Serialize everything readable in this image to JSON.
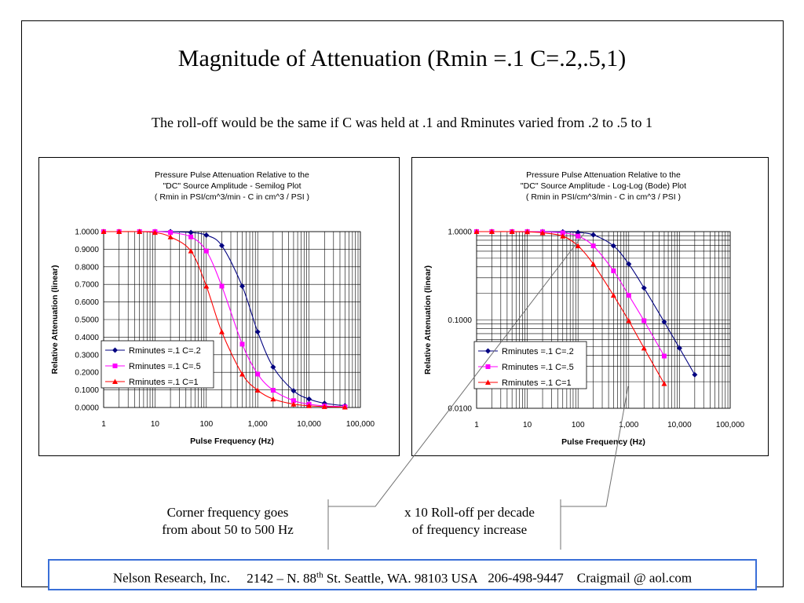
{
  "slide": {
    "title": "Magnitude of Attenuation (Rmin =.1 C=.2,.5,1)",
    "subtitle": "The roll-off would be the same if C was held at .1 and Rminutes varied from .2 to .5 to 1"
  },
  "annotations": {
    "corner_line1": "Corner frequency goes",
    "corner_line2": "from about 50 to 500 Hz",
    "rolloff_line1": "x 10 Roll-off per decade",
    "rolloff_line2": "of frequency increase"
  },
  "footer": {
    "company": "Nelson Research, Inc.",
    "address_pre": "2142 –  N. 88",
    "address_sup": "th",
    "address_post": " St. Seattle, WA. 98103   USA",
    "phone": "206-498-9447",
    "email": "Craigmail @ aol.com"
  },
  "colors": {
    "series1": "#000080",
    "series2": "#ff00ff",
    "series3": "#ff0000",
    "footer_border": "#3a6fd8"
  },
  "chart_data": [
    {
      "type": "line",
      "title_lines": [
        "Pressure Pulse Attenuation Relative to the",
        "\"DC\" Source Amplitude - Semilog Plot",
        "( Rmin in PSI/cm^3/min  -  C in cm^3 / PSI )"
      ],
      "xlabel": "Pulse Frequency (Hz)",
      "ylabel": "Relative Attenuation (linear)",
      "x_scale": "log",
      "y_scale": "linear",
      "xlim": [
        1,
        100000
      ],
      "ylim": [
        0,
        1
      ],
      "x_ticks": [
        1,
        10,
        100,
        1000,
        10000,
        100000
      ],
      "x_tick_labels": [
        "1",
        "10",
        "100",
        "1,000",
        "10,000",
        "100,000"
      ],
      "y_ticks": [
        0,
        0.1,
        0.2,
        0.3,
        0.4,
        0.5,
        0.6,
        0.7,
        0.8,
        0.9,
        1.0
      ],
      "y_tick_labels": [
        "0.0000",
        "0.1000",
        "0.2000",
        "0.3000",
        "0.4000",
        "0.5000",
        "0.6000",
        "0.7000",
        "0.8000",
        "0.9000",
        "1.0000"
      ],
      "grid": true,
      "legend_position": "lower-left",
      "series": [
        {
          "name": "Rminutes =.1 C=.2",
          "marker": "diamond",
          "x": [
            1,
            2,
            5,
            10,
            20,
            50,
            100,
            200,
            500,
            1000,
            2000,
            5000,
            10000,
            20000,
            50000
          ],
          "y": [
            1.0,
            1.0,
            1.0,
            1.0,
            1.0,
            0.995,
            0.98,
            0.92,
            0.69,
            0.43,
            0.23,
            0.095,
            0.048,
            0.024,
            0.01
          ]
        },
        {
          "name": "Rminutes =.1 C=.5",
          "marker": "square",
          "x": [
            1,
            2,
            5,
            10,
            20,
            50,
            100,
            200,
            500,
            1000,
            2000,
            5000,
            10000,
            20000,
            50000
          ],
          "y": [
            1.0,
            1.0,
            1.0,
            1.0,
            0.995,
            0.97,
            0.89,
            0.69,
            0.36,
            0.19,
            0.098,
            0.039,
            0.019,
            0.009,
            0.004
          ]
        },
        {
          "name": "Rminutes =.1 C=1",
          "marker": "triangle",
          "x": [
            1,
            2,
            5,
            10,
            20,
            50,
            100,
            200,
            500,
            1000,
            2000,
            5000,
            10000,
            20000,
            50000
          ],
          "y": [
            1.0,
            1.0,
            1.0,
            0.995,
            0.97,
            0.89,
            0.69,
            0.43,
            0.19,
            0.098,
            0.048,
            0.019,
            0.01,
            0.005,
            0.002
          ]
        }
      ]
    },
    {
      "type": "line",
      "title_lines": [
        "Pressure Pulse Attenuation Relative to the",
        "\"DC\" Source Amplitude - Log-Log (Bode) Plot",
        "( Rmin in PSI/cm^3/min  -  C in cm^3 / PSI )"
      ],
      "xlabel": "Pulse Frequency (Hz)",
      "ylabel": "Relative Attenuation (linear)",
      "x_scale": "log",
      "y_scale": "log",
      "xlim": [
        1,
        100000
      ],
      "ylim": [
        0.01,
        1
      ],
      "x_ticks": [
        1,
        10,
        100,
        1000,
        10000,
        100000
      ],
      "x_tick_labels": [
        "1",
        "10",
        "100",
        "1,000",
        "10,000",
        "100,000"
      ],
      "y_ticks": [
        0.01,
        0.1,
        1
      ],
      "y_tick_labels": [
        "0.0100",
        "0.1000",
        "1.0000"
      ],
      "grid": true,
      "legend_position": "lower-left",
      "series": [
        {
          "name": "Rminutes =.1 C=.2",
          "marker": "diamond",
          "x": [
            1,
            2,
            5,
            10,
            20,
            50,
            100,
            200,
            500,
            1000,
            2000,
            5000,
            10000,
            20000
          ],
          "y": [
            1.0,
            1.0,
            1.0,
            1.0,
            1.0,
            0.995,
            0.98,
            0.92,
            0.69,
            0.43,
            0.23,
            0.095,
            0.048,
            0.024
          ]
        },
        {
          "name": "Rminutes =.1 C=.5",
          "marker": "square",
          "x": [
            1,
            2,
            5,
            10,
            20,
            50,
            100,
            200,
            500,
            1000,
            2000,
            5000
          ],
          "y": [
            1.0,
            1.0,
            1.0,
            1.0,
            0.995,
            0.97,
            0.89,
            0.69,
            0.36,
            0.19,
            0.098,
            0.039
          ]
        },
        {
          "name": "Rminutes =.1 C=1",
          "marker": "triangle",
          "x": [
            1,
            2,
            5,
            10,
            20,
            50,
            100,
            200,
            500,
            1000,
            2000,
            5000
          ],
          "y": [
            1.0,
            1.0,
            1.0,
            0.995,
            0.97,
            0.89,
            0.69,
            0.43,
            0.19,
            0.098,
            0.048,
            0.019
          ]
        }
      ]
    }
  ]
}
